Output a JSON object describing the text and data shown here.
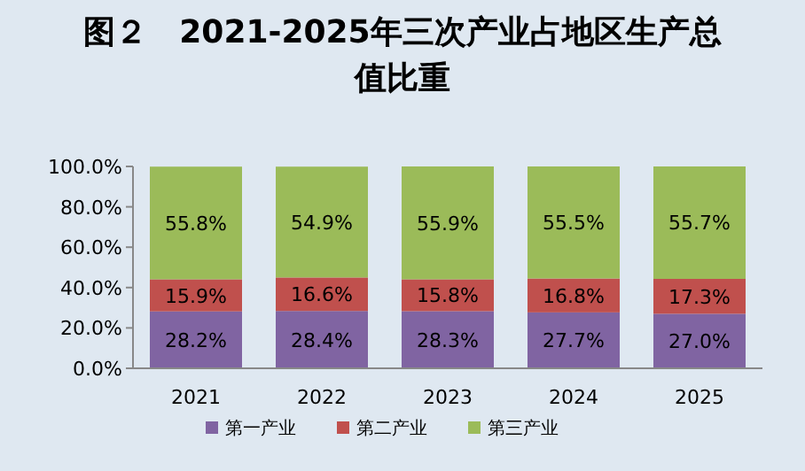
{
  "chart_data": {
    "type": "bar",
    "stacked": true,
    "title": "图２　2021-2025年三次产业占地区生产总值比重",
    "categories": [
      "2021",
      "2022",
      "2023",
      "2024",
      "2025"
    ],
    "series": [
      {
        "name": "第一产业",
        "color": "#8064a2",
        "values": [
          28.2,
          28.4,
          28.3,
          27.7,
          27.0
        ],
        "value_labels": [
          "28.2%",
          "28.4%",
          "28.3%",
          "27.7%",
          "27.0%"
        ]
      },
      {
        "name": "第二产业",
        "color": "#c0504d",
        "values": [
          15.9,
          16.6,
          15.8,
          16.8,
          17.3
        ],
        "value_labels": [
          "15.9%",
          "16.6%",
          "15.8%",
          "16.8%",
          "17.3%"
        ]
      },
      {
        "name": "第三产业",
        "color": "#9bbb59",
        "values": [
          55.8,
          54.9,
          55.9,
          55.5,
          55.7
        ],
        "value_labels": [
          "55.8%",
          "54.9%",
          "55.9%",
          "55.5%",
          "55.7%"
        ]
      }
    ],
    "ylim": [
      0,
      100
    ],
    "yticks": [
      {
        "value": 0,
        "label": "0.0%"
      },
      {
        "value": 20,
        "label": "20.0%"
      },
      {
        "value": 40,
        "label": "40.0%"
      },
      {
        "value": 60,
        "label": "60.0%"
      },
      {
        "value": 80,
        "label": "80.0%"
      },
      {
        "value": 100,
        "label": "100.0%"
      }
    ],
    "legend": "bottom",
    "grid": false
  }
}
